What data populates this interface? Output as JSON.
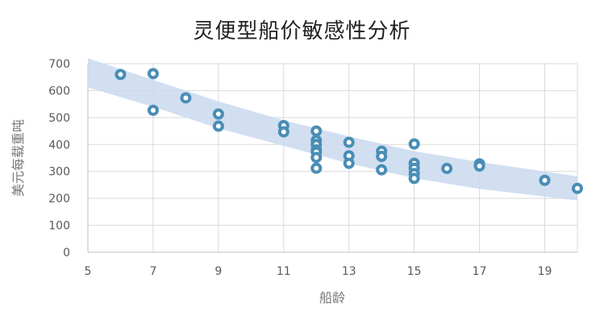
{
  "chart_data": {
    "type": "scatter",
    "title": "灵便型船价敏感性分析",
    "xlabel": "船龄",
    "ylabel": "美元每载重吨",
    "xlim": [
      5,
      20
    ],
    "ylim": [
      0,
      700
    ],
    "x_ticks": [
      5,
      7,
      9,
      11,
      13,
      15,
      17,
      19
    ],
    "y_ticks": [
      0,
      100,
      200,
      300,
      400,
      500,
      600,
      700
    ],
    "grid": true,
    "points": [
      {
        "x": 6,
        "y": 660
      },
      {
        "x": 7,
        "y": 663
      },
      {
        "x": 7,
        "y": 527
      },
      {
        "x": 8,
        "y": 573
      },
      {
        "x": 9,
        "y": 513
      },
      {
        "x": 9,
        "y": 468
      },
      {
        "x": 11,
        "y": 470
      },
      {
        "x": 11,
        "y": 447
      },
      {
        "x": 12,
        "y": 450
      },
      {
        "x": 12,
        "y": 415
      },
      {
        "x": 12,
        "y": 400
      },
      {
        "x": 12,
        "y": 380
      },
      {
        "x": 12,
        "y": 372
      },
      {
        "x": 12,
        "y": 352
      },
      {
        "x": 12,
        "y": 312
      },
      {
        "x": 13,
        "y": 408
      },
      {
        "x": 13,
        "y": 358
      },
      {
        "x": 13,
        "y": 330
      },
      {
        "x": 14,
        "y": 375
      },
      {
        "x": 14,
        "y": 356
      },
      {
        "x": 14,
        "y": 306
      },
      {
        "x": 15,
        "y": 402
      },
      {
        "x": 15,
        "y": 330
      },
      {
        "x": 15,
        "y": 312
      },
      {
        "x": 15,
        "y": 292
      },
      {
        "x": 15,
        "y": 274
      },
      {
        "x": 16,
        "y": 311
      },
      {
        "x": 17,
        "y": 328
      },
      {
        "x": 17,
        "y": 320
      },
      {
        "x": 19,
        "y": 267
      },
      {
        "x": 20,
        "y": 237
      }
    ],
    "confidence_band": {
      "x": [
        5,
        7,
        9,
        11,
        13,
        15,
        17,
        20
      ],
      "upper": [
        720,
        640,
        560,
        490,
        430,
        375,
        335,
        282
      ],
      "lower": [
        612,
        540,
        460,
        395,
        330,
        275,
        235,
        192
      ]
    },
    "colors": {
      "marker_stroke": "#4a8db5",
      "marker_fill": "#ffffff",
      "band_fill": "#c9d9ee",
      "grid": "#d9d9d9",
      "axis": "#bfbfbf",
      "tick_text": "#595959"
    }
  }
}
